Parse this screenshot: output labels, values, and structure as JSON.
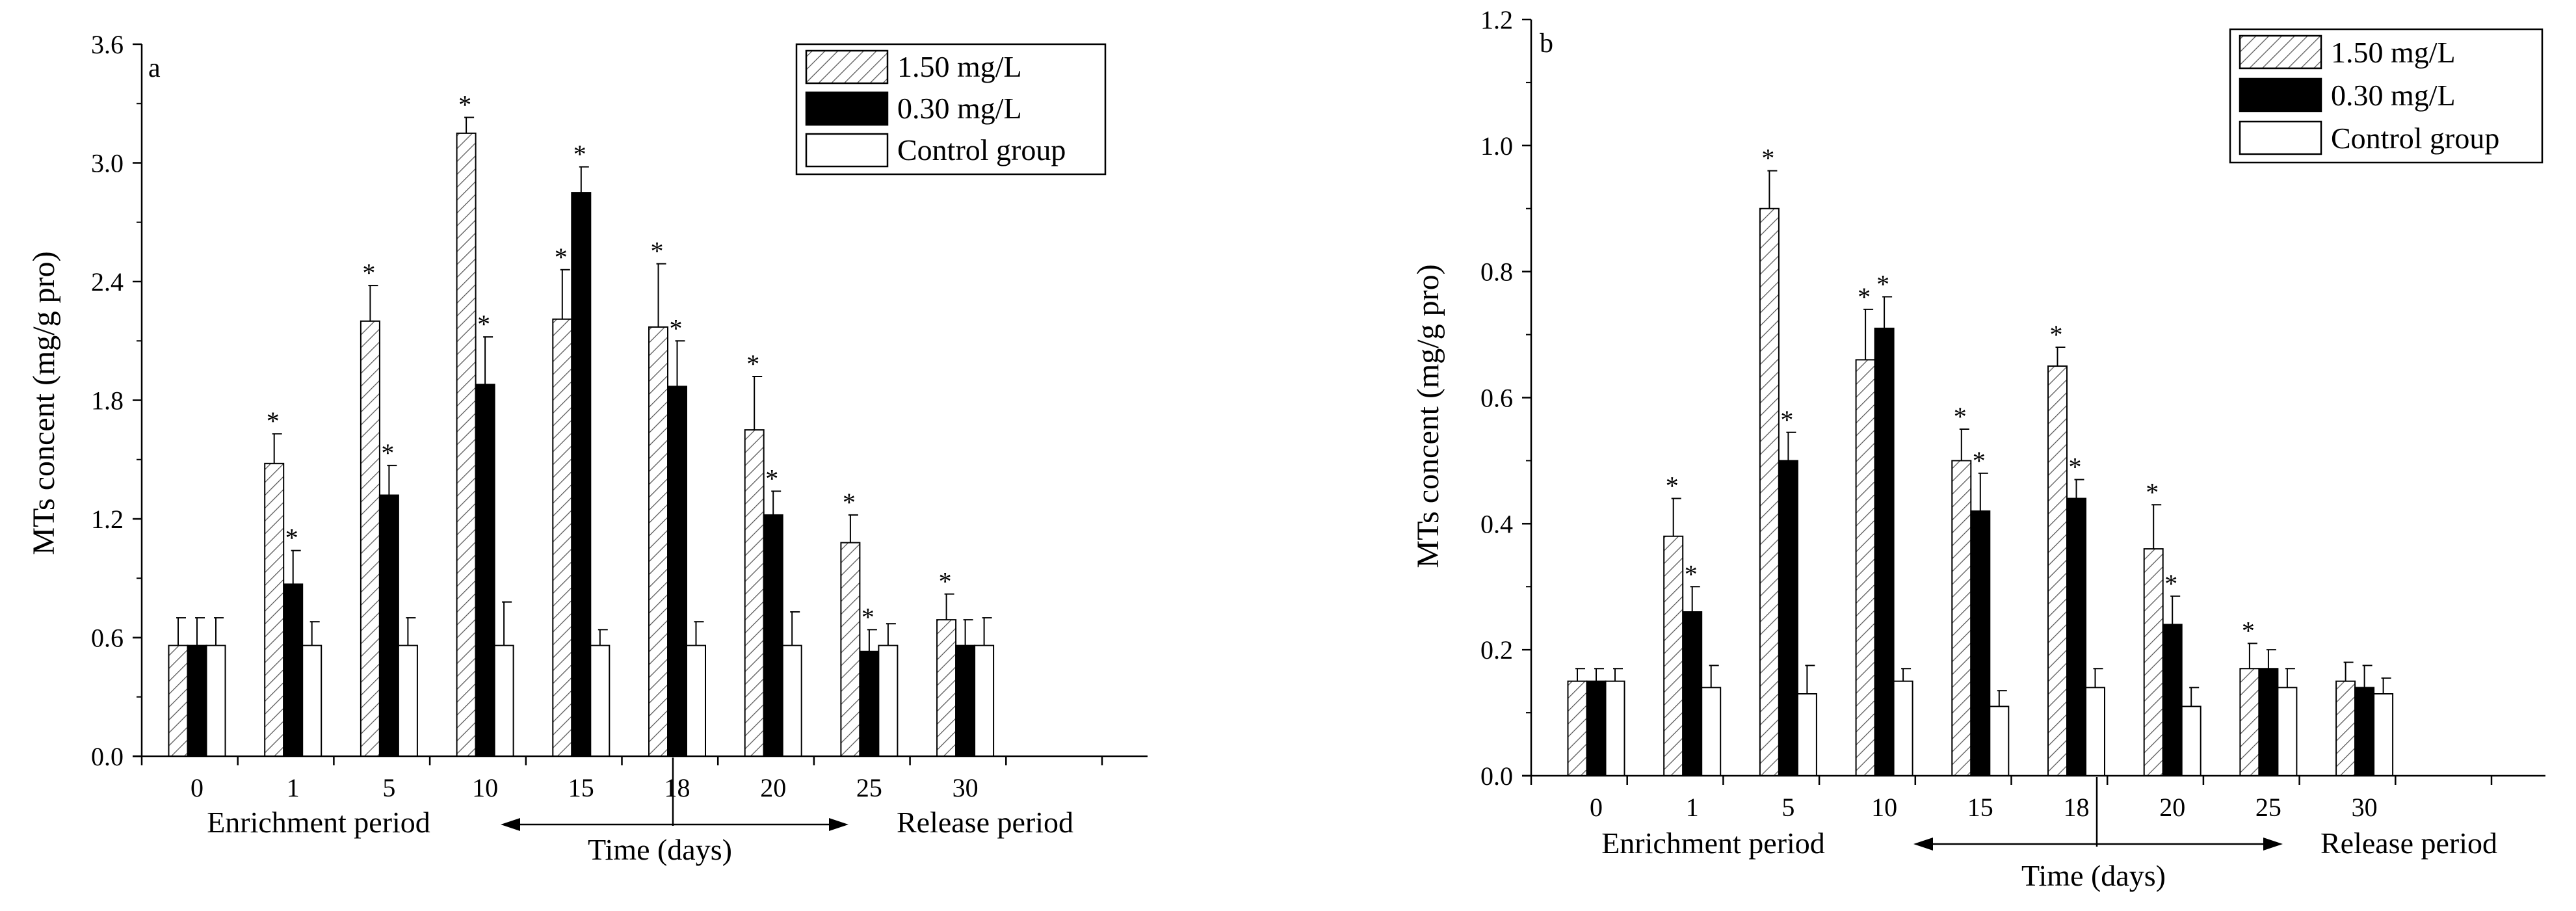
{
  "chart_data": [
    {
      "type": "bar",
      "panel_label": "a",
      "categories": [
        "0",
        "1",
        "5",
        "10",
        "15",
        "18",
        "20",
        "25",
        "30"
      ],
      "ylabel": "MTs concent (mg/g pro)",
      "xlabel": "Time (days)",
      "ylim": [
        0,
        3.6
      ],
      "yticks": [
        "0.0",
        "0.6",
        "1.2",
        "1.8",
        "2.4",
        "3.0",
        "3.6"
      ],
      "period_labels": {
        "left": "Enrichment period",
        "right": "Release period"
      },
      "legend_position": "top-right",
      "series": [
        {
          "name": "1.50 mg/L",
          "pattern": "hatch",
          "values": [
            0.56,
            1.48,
            2.2,
            3.15,
            2.21,
            2.17,
            1.65,
            1.08,
            0.69
          ],
          "errors": [
            0.14,
            0.15,
            0.18,
            0.08,
            0.25,
            0.32,
            0.27,
            0.14,
            0.13
          ],
          "significant": [
            false,
            true,
            true,
            true,
            true,
            true,
            true,
            true,
            true
          ]
        },
        {
          "name": "0.30 mg/L",
          "pattern": "solid",
          "values": [
            0.56,
            0.87,
            1.32,
            1.88,
            2.85,
            1.87,
            1.22,
            0.53,
            0.56
          ],
          "errors": [
            0.14,
            0.17,
            0.15,
            0.24,
            0.13,
            0.23,
            0.12,
            0.11,
            0.13
          ],
          "significant": [
            false,
            true,
            true,
            true,
            true,
            true,
            true,
            true,
            false
          ]
        },
        {
          "name": "Control group",
          "pattern": "open",
          "values": [
            0.56,
            0.56,
            0.56,
            0.56,
            0.56,
            0.56,
            0.56,
            0.56,
            0.56
          ],
          "errors": [
            0.14,
            0.12,
            0.14,
            0.22,
            0.08,
            0.12,
            0.17,
            0.11,
            0.14
          ],
          "significant": [
            false,
            false,
            false,
            false,
            false,
            false,
            false,
            false,
            false
          ]
        }
      ]
    },
    {
      "type": "bar",
      "panel_label": "b",
      "categories": [
        "0",
        "1",
        "5",
        "10",
        "15",
        "18",
        "20",
        "25",
        "30"
      ],
      "ylabel": "MTs concent (mg/g pro)",
      "xlabel": "Time (days)",
      "ylim": [
        0,
        1.2
      ],
      "yticks": [
        "0.0",
        "0.2",
        "0.4",
        "0.6",
        "0.8",
        "1.0",
        "1.2"
      ],
      "period_labels": {
        "left": "Enrichment period",
        "right": "Release period"
      },
      "legend_position": "top-right",
      "series": [
        {
          "name": "1.50 mg/L",
          "pattern": "hatch",
          "values": [
            0.15,
            0.38,
            0.9,
            0.66,
            0.5,
            0.65,
            0.36,
            0.17,
            0.15
          ],
          "errors": [
            0.02,
            0.06,
            0.06,
            0.08,
            0.05,
            0.03,
            0.07,
            0.04,
            0.03
          ],
          "significant": [
            false,
            true,
            true,
            true,
            true,
            true,
            true,
            true,
            false
          ]
        },
        {
          "name": "0.30 mg/L",
          "pattern": "solid",
          "values": [
            0.15,
            0.26,
            0.5,
            0.71,
            0.42,
            0.44,
            0.24,
            0.17,
            0.14
          ],
          "errors": [
            0.02,
            0.04,
            0.045,
            0.05,
            0.06,
            0.03,
            0.045,
            0.03,
            0.035
          ],
          "significant": [
            false,
            true,
            true,
            true,
            true,
            true,
            true,
            false,
            false
          ]
        },
        {
          "name": "Control group",
          "pattern": "open",
          "values": [
            0.15,
            0.14,
            0.13,
            0.15,
            0.11,
            0.14,
            0.11,
            0.14,
            0.13
          ],
          "errors": [
            0.02,
            0.035,
            0.045,
            0.02,
            0.025,
            0.03,
            0.03,
            0.03,
            0.025
          ],
          "significant": [
            false,
            false,
            false,
            false,
            false,
            false,
            false,
            false,
            false
          ]
        }
      ]
    }
  ]
}
